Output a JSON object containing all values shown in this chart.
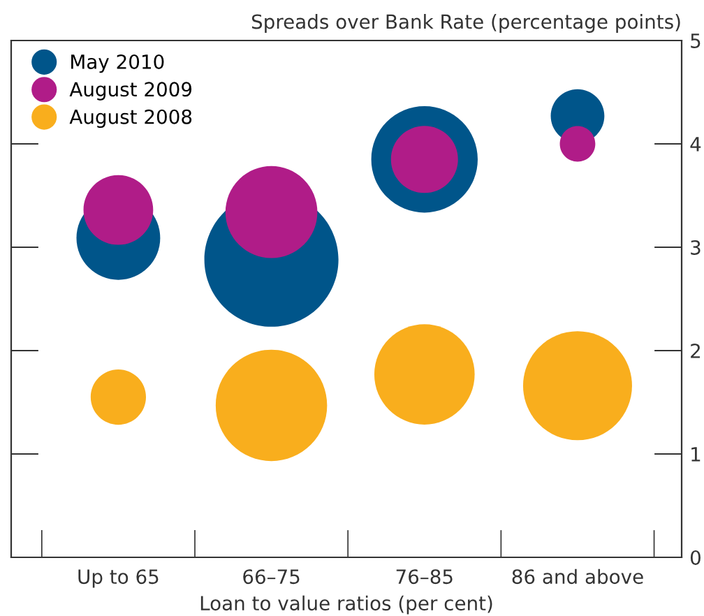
{
  "chart_data": {
    "type": "bubble",
    "categories": [
      "Up to 65",
      "66–75",
      "76–85",
      "86 and above"
    ],
    "xlabel": "Loan to value ratios (per cent)",
    "ylabel": "Spreads over Bank Rate (percentage points)",
    "ylim": [
      0,
      5
    ],
    "yticks": [
      0,
      1,
      2,
      3,
      4,
      5
    ],
    "tick_labels": "y2",
    "legend": "top left",
    "grid": false,
    "marker": "circle",
    "series": [
      {
        "name": "May 2010",
        "color": "#00558a",
        "values": [
          3.09,
          2.88,
          3.85,
          4.27
        ],
        "sizes": [
          0.39,
          1.0,
          0.63,
          0.16
        ]
      },
      {
        "name": "August 2009",
        "color": "#b01c88",
        "values": [
          3.36,
          3.34,
          3.85,
          4.0
        ],
        "sizes": [
          0.27,
          0.47,
          0.25,
          0.07
        ]
      },
      {
        "name": "August 2008",
        "color": "#f9ae1d",
        "values": [
          1.55,
          1.47,
          1.77,
          1.66
        ],
        "sizes": [
          0.17,
          0.69,
          0.56,
          0.66
        ]
      }
    ]
  }
}
